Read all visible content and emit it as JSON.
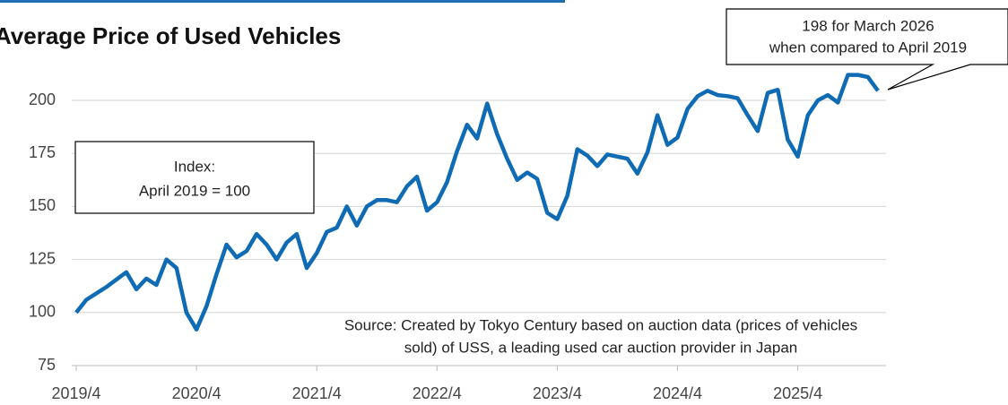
{
  "chart_data": {
    "type": "line",
    "title": "Average Price of Used Vehicles",
    "categories": [
      "2019/4",
      null,
      null,
      null,
      null,
      null,
      null,
      null,
      null,
      null,
      null,
      null,
      "2020/4",
      null,
      null,
      null,
      null,
      null,
      null,
      null,
      null,
      null,
      null,
      null,
      "2021/4",
      null,
      null,
      null,
      null,
      null,
      null,
      null,
      null,
      null,
      null,
      null,
      "2022/4",
      null,
      null,
      null,
      null,
      null,
      null,
      null,
      null,
      null,
      null,
      null,
      "2023/4",
      null,
      null,
      null,
      null,
      null,
      null,
      null,
      null,
      null,
      null,
      null,
      "2024/4",
      null,
      null,
      null,
      null,
      null,
      null,
      null,
      null,
      null,
      null,
      null,
      "2025/4",
      null,
      null,
      null,
      null,
      null,
      null,
      null,
      null
    ],
    "series": [
      {
        "name": "Index",
        "color": "#0f6bb4",
        "values": [
          100,
          106,
          109,
          112,
          115.5,
          119,
          111,
          116,
          113,
          125,
          121,
          100,
          92,
          103,
          118,
          132,
          126,
          129,
          137,
          132,
          125,
          133,
          137,
          121,
          128,
          138,
          140,
          150,
          141,
          150,
          153,
          153,
          152,
          159.5,
          164,
          148,
          152,
          161.5,
          176,
          188.5,
          182,
          198.5,
          184,
          172.5,
          162.5,
          166,
          163,
          147,
          144,
          155,
          177,
          174,
          169,
          174.5,
          173.5,
          172.5,
          165.5,
          175.5,
          193,
          179,
          182.5,
          196,
          202,
          204.5,
          202.5,
          202,
          201,
          193,
          185.5,
          203.5,
          205,
          181.5,
          173.5,
          193,
          200,
          202.5,
          199,
          212,
          212,
          211,
          204.5
        ]
      }
    ],
    "ylim": [
      75,
      212
    ],
    "yticks": [
      75,
      100,
      125,
      150,
      175,
      200
    ],
    "grid": true,
    "annotations": {
      "index_note": [
        "Index:",
        "April 2019 = 100"
      ],
      "callout": [
        "198 for March 2026",
        "when compared to April 2019"
      ],
      "source": [
        "Source: Created by Tokyo Century based on auction data (prices of vehicles",
        "sold) of USS, a leading used car auction provider in Japan"
      ]
    }
  }
}
